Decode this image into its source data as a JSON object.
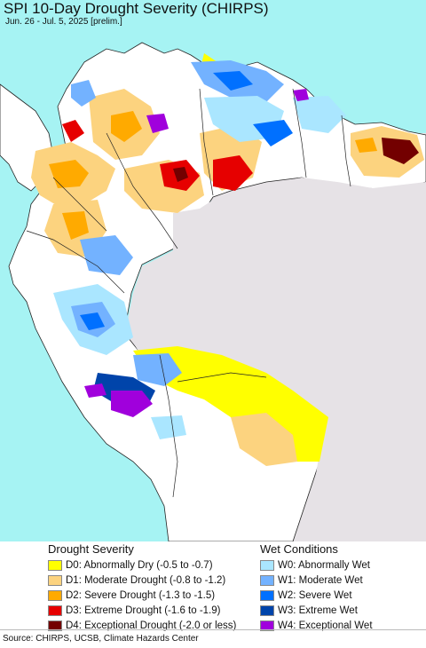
{
  "header": {
    "title": "SPI 10-Day Drought Severity (CHIRPS)",
    "subtitle": "Jun. 26 - Jul. 5, 2025 [prelim.]"
  },
  "legend": {
    "drought_heading": "Drought Severity",
    "wet_heading": "Wet Conditions",
    "drought": [
      {
        "label": "D0: Abnormally Dry (-0.5 to -0.7)",
        "color": "#ffff00"
      },
      {
        "label": "D1: Moderate Drought (-0.8 to -1.2)",
        "color": "#fcd37f"
      },
      {
        "label": "D2: Severe Drought (-1.3 to -1.5)",
        "color": "#ffaa00"
      },
      {
        "label": "D3: Extreme Drought (-1.6 to -1.9)",
        "color": "#e60000"
      },
      {
        "label": "D4: Exceptional Drought (-2.0 or less)",
        "color": "#730000"
      }
    ],
    "wet": [
      {
        "label": "W0: Abnormally Wet",
        "color": "#aae6ff"
      },
      {
        "label": "W1: Moderate Wet",
        "color": "#73b2ff"
      },
      {
        "label": "W2: Severe Wet",
        "color": "#0070ff"
      },
      {
        "label": "W3: Extreme Wet",
        "color": "#0044aa"
      },
      {
        "label": "W4: Exceptional Wet",
        "color": "#a000dc"
      }
    ]
  },
  "footer": {
    "source": "Source: CHIRPS, UCSB, Climate Hazards Center"
  },
  "map": {
    "colors": {
      "ocean": "#a6f3f3",
      "land": "#ffffff",
      "masked": "#e6e2e6",
      "border": "#222222"
    }
  }
}
